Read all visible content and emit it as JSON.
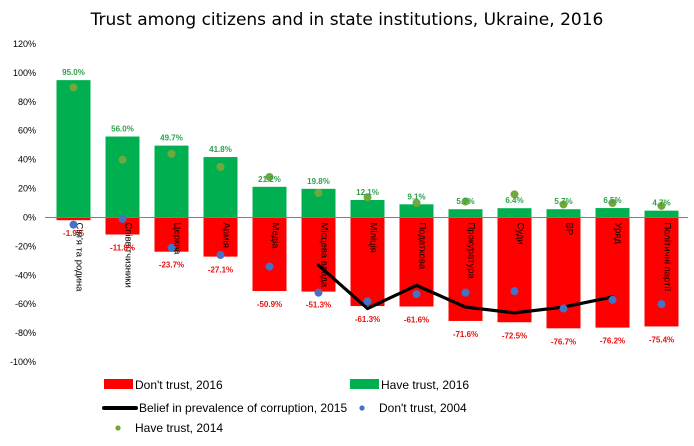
{
  "chart_data": {
    "type": "bar",
    "title": "Trust among citizens and in state institutions, Ukraine, 2016",
    "ylim": [
      -100,
      120
    ],
    "yticks": [
      "120%",
      "100%",
      "80%",
      "60%",
      "40%",
      "20%",
      "0%",
      "-20%",
      "-40%",
      "-60%",
      "-80%",
      "-100%"
    ],
    "categories": [
      "Сім'я та родина",
      "Співвітчизники",
      "Церква",
      "Армія",
      "Медіа",
      "Місцева влада",
      "Міліція",
      "Податкова",
      "Прокуратура",
      "Суди",
      "ВР",
      "Уряд",
      "Політичні партії"
    ],
    "series": [
      {
        "name": "Don't trust, 2016",
        "kind": "bar",
        "color": "#ff0000",
        "values": [
          -1.9,
          -11.8,
          -23.7,
          -27.1,
          -50.9,
          -51.3,
          -61.3,
          -61.6,
          -71.6,
          -72.5,
          -76.7,
          -76.2,
          -75.4
        ],
        "labels": [
          "-1.9%",
          "-11.8%",
          "-23.7%",
          "-27.1%",
          "-50.9%",
          "-51.3%",
          "-61.3%",
          "-61.6%",
          "-71.6%",
          "-72.5%",
          "-76.7%",
          "-76.2%",
          "-75.4%"
        ]
      },
      {
        "name": "Have trust, 2016",
        "kind": "bar",
        "color": "#00b050",
        "values": [
          95.0,
          56.0,
          49.7,
          41.8,
          21.2,
          19.8,
          12.1,
          9.1,
          5.7,
          6.4,
          5.7,
          6.5,
          4.7
        ],
        "labels": [
          "95.0%",
          "56.0%",
          "49.7%",
          "41.8%",
          "21.2%",
          "19.8%",
          "12.1%",
          "9.1%",
          "5.7%",
          "6.4%",
          "5.7%",
          "6.5%",
          "4.7%"
        ]
      },
      {
        "name": "Belief in prevalence of corruption, 2015",
        "kind": "line",
        "color": "#000000",
        "values": [
          null,
          null,
          null,
          null,
          null,
          -33,
          -63,
          -47,
          -62,
          -66,
          -62,
          -55,
          null
        ]
      },
      {
        "name": "Don't trust, 2004",
        "kind": "marker",
        "color": "#4472c4",
        "values": [
          -5,
          -1,
          -21,
          -26,
          -34,
          -52,
          -58,
          -53,
          -52,
          -51,
          -63,
          -57,
          -60
        ]
      },
      {
        "name": "Have trust, 2014",
        "kind": "marker",
        "color": "#70a83b",
        "values": [
          90,
          40,
          44,
          35,
          28,
          17,
          14,
          10,
          11,
          16,
          9,
          10,
          8
        ]
      }
    ],
    "legend": {
      "placement": "bottom"
    }
  }
}
